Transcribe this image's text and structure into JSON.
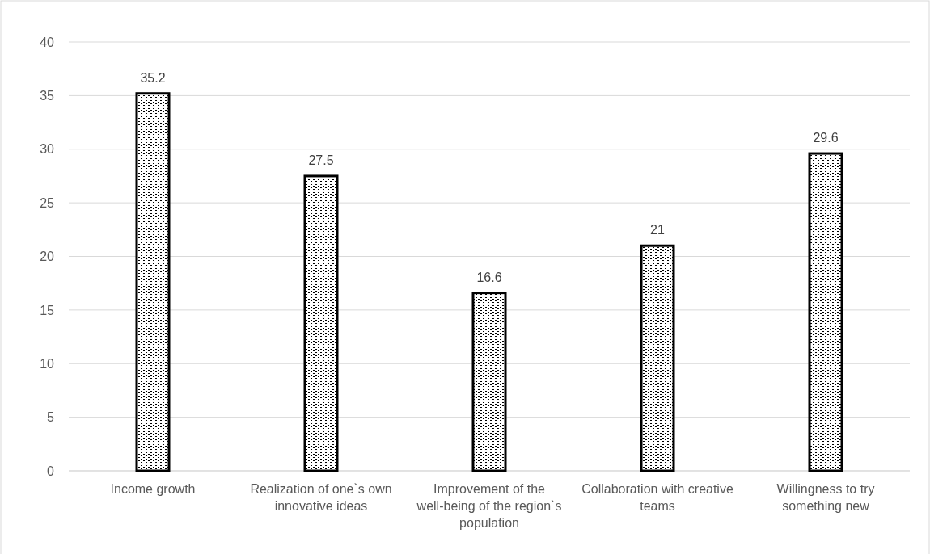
{
  "chart_data": {
    "type": "bar",
    "categories": [
      "Income growth",
      "Realization of one`s own innovative ideas",
      "Improvement of the well-being of the region`s population",
      "Collaboration with creative teams",
      "Willingness to try something new"
    ],
    "values": [
      35.2,
      27.5,
      16.6,
      21,
      29.6
    ],
    "color": "#000000",
    "ylim": [
      0,
      40
    ],
    "yticks": [
      0,
      5,
      10,
      15,
      20,
      25,
      30,
      35,
      40
    ],
    "grid": "y",
    "data_labels": true
  }
}
